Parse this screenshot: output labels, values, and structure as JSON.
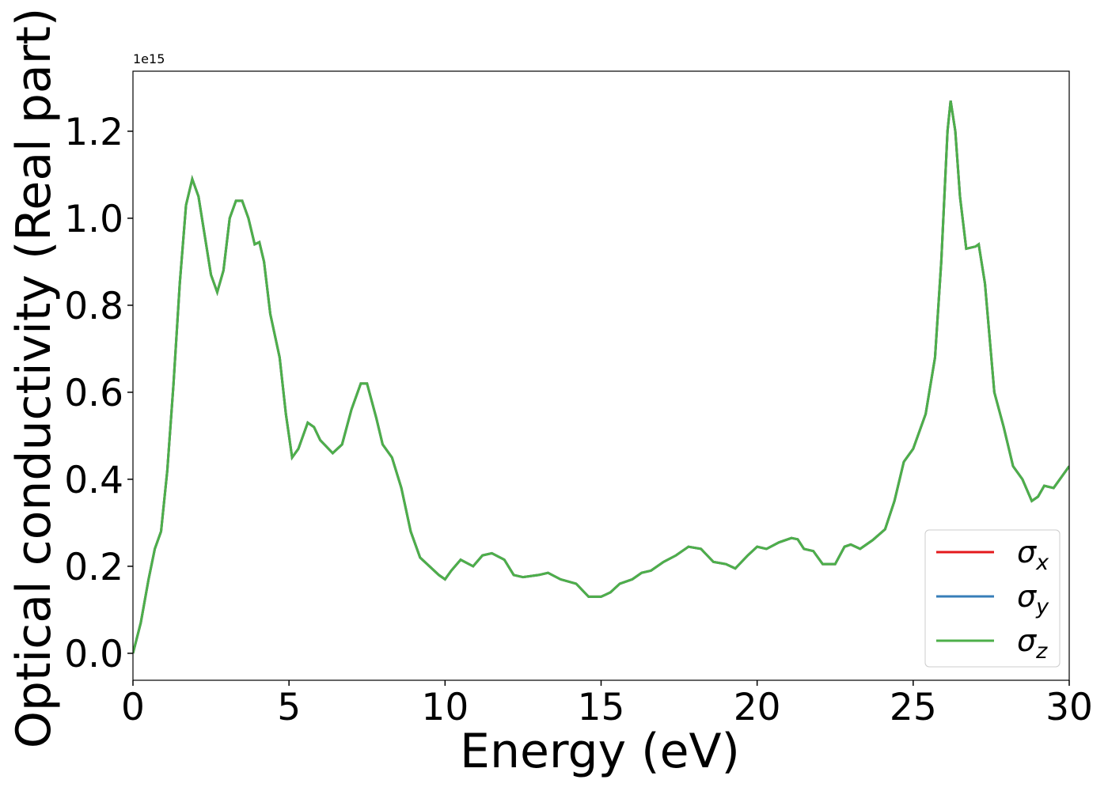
{
  "chart_data": {
    "type": "line",
    "x_label": "Energy (eV)",
    "y_label": "Optical conductivity (Real part)",
    "y_offset_label": "1e15",
    "xlim": [
      0,
      30
    ],
    "xticks": [
      0,
      5,
      10,
      15,
      20,
      25,
      30
    ],
    "ylim": [
      -0.062,
      1.338
    ],
    "yticks": [
      {
        "value": 0,
        "label": "0.0"
      },
      {
        "value": 0.2,
        "label": "0.2"
      },
      {
        "value": 0.4,
        "label": "0.4"
      },
      {
        "value": 0.6,
        "label": "0.6"
      },
      {
        "value": 0.8,
        "label": "0.8"
      },
      {
        "value": 1.0,
        "label": "1.0"
      },
      {
        "value": 1.2,
        "label": "1.2"
      }
    ],
    "legend": "lower right",
    "grid": false,
    "x": [
      0,
      0.25,
      0.5,
      0.7,
      0.9,
      1.1,
      1.3,
      1.5,
      1.7,
      1.9,
      2.1,
      2.3,
      2.5,
      2.7,
      2.9,
      3.1,
      3.3,
      3.5,
      3.7,
      3.9,
      4.05,
      4.2,
      4.4,
      4.7,
      4.9,
      5.1,
      5.3,
      5.6,
      5.8,
      6.0,
      6.4,
      6.7,
      7.0,
      7.3,
      7.5,
      7.8,
      8.0,
      8.3,
      8.6,
      8.9,
      9.2,
      9.5,
      9.8,
      10.0,
      10.2,
      10.5,
      10.9,
      11.2,
      11.5,
      11.9,
      12.2,
      12.5,
      13.0,
      13.3,
      13.7,
      14.2,
      14.6,
      15.0,
      15.3,
      15.6,
      16.0,
      16.3,
      16.6,
      17.0,
      17.4,
      17.8,
      18.2,
      18.6,
      19.0,
      19.3,
      19.7,
      20.0,
      20.3,
      20.7,
      21.1,
      21.3,
      21.5,
      21.8,
      22.1,
      22.5,
      22.8,
      23.0,
      23.3,
      23.7,
      24.1,
      24.4,
      24.7,
      25.0,
      25.4,
      25.7,
      25.9,
      26.1,
      26.2,
      26.35,
      26.5,
      26.7,
      27.0,
      27.1,
      27.3,
      27.6,
      27.9,
      28.2,
      28.5,
      28.8,
      29.0,
      29.2,
      29.5,
      29.8,
      30
    ],
    "series": [
      {
        "name": "σx",
        "color": "#e41a1c",
        "values": [
          0,
          0.07,
          0.17,
          0.24,
          0.28,
          0.42,
          0.62,
          0.85,
          1.03,
          1.09,
          1.05,
          0.96,
          0.87,
          0.83,
          0.88,
          1.0,
          1.04,
          1.04,
          1.0,
          0.94,
          0.945,
          0.9,
          0.78,
          0.68,
          0.55,
          0.45,
          0.47,
          0.53,
          0.52,
          0.49,
          0.46,
          0.48,
          0.56,
          0.62,
          0.62,
          0.54,
          0.48,
          0.45,
          0.38,
          0.28,
          0.22,
          0.2,
          0.18,
          0.17,
          0.19,
          0.215,
          0.2,
          0.225,
          0.23,
          0.215,
          0.18,
          0.175,
          0.18,
          0.185,
          0.17,
          0.16,
          0.13,
          0.13,
          0.14,
          0.16,
          0.17,
          0.185,
          0.19,
          0.21,
          0.225,
          0.245,
          0.24,
          0.21,
          0.205,
          0.195,
          0.225,
          0.245,
          0.24,
          0.255,
          0.265,
          0.262,
          0.24,
          0.235,
          0.205,
          0.205,
          0.245,
          0.25,
          0.24,
          0.26,
          0.285,
          0.35,
          0.44,
          0.47,
          0.55,
          0.68,
          0.9,
          1.2,
          1.27,
          1.2,
          1.05,
          0.93,
          0.935,
          0.94,
          0.85,
          0.6,
          0.52,
          0.43,
          0.4,
          0.35,
          0.36,
          0.385,
          0.38,
          0.41,
          0.43
        ]
      },
      {
        "name": "σy",
        "color": "#377eb8",
        "values": [
          0,
          0.07,
          0.17,
          0.24,
          0.28,
          0.42,
          0.62,
          0.85,
          1.03,
          1.09,
          1.05,
          0.96,
          0.87,
          0.83,
          0.88,
          1.0,
          1.04,
          1.04,
          1.0,
          0.94,
          0.945,
          0.9,
          0.78,
          0.68,
          0.55,
          0.45,
          0.47,
          0.53,
          0.52,
          0.49,
          0.46,
          0.48,
          0.56,
          0.62,
          0.62,
          0.54,
          0.48,
          0.45,
          0.38,
          0.28,
          0.22,
          0.2,
          0.18,
          0.17,
          0.19,
          0.215,
          0.2,
          0.225,
          0.23,
          0.215,
          0.18,
          0.175,
          0.18,
          0.185,
          0.17,
          0.16,
          0.13,
          0.13,
          0.14,
          0.16,
          0.17,
          0.185,
          0.19,
          0.21,
          0.225,
          0.245,
          0.24,
          0.21,
          0.205,
          0.195,
          0.225,
          0.245,
          0.24,
          0.255,
          0.265,
          0.262,
          0.24,
          0.235,
          0.205,
          0.205,
          0.245,
          0.25,
          0.24,
          0.26,
          0.285,
          0.35,
          0.44,
          0.47,
          0.55,
          0.68,
          0.9,
          1.2,
          1.27,
          1.2,
          1.05,
          0.93,
          0.935,
          0.94,
          0.85,
          0.6,
          0.52,
          0.43,
          0.4,
          0.35,
          0.36,
          0.385,
          0.38,
          0.41,
          0.43
        ]
      },
      {
        "name": "σz",
        "color": "#4daf4a",
        "values": [
          0,
          0.07,
          0.17,
          0.24,
          0.28,
          0.42,
          0.62,
          0.85,
          1.03,
          1.09,
          1.05,
          0.96,
          0.87,
          0.83,
          0.88,
          1.0,
          1.04,
          1.04,
          1.0,
          0.94,
          0.945,
          0.9,
          0.78,
          0.68,
          0.55,
          0.45,
          0.47,
          0.53,
          0.52,
          0.49,
          0.46,
          0.48,
          0.56,
          0.62,
          0.62,
          0.54,
          0.48,
          0.45,
          0.38,
          0.28,
          0.22,
          0.2,
          0.18,
          0.17,
          0.19,
          0.215,
          0.2,
          0.225,
          0.23,
          0.215,
          0.18,
          0.175,
          0.18,
          0.185,
          0.17,
          0.16,
          0.13,
          0.13,
          0.14,
          0.16,
          0.17,
          0.185,
          0.19,
          0.21,
          0.225,
          0.245,
          0.24,
          0.21,
          0.205,
          0.195,
          0.225,
          0.245,
          0.24,
          0.255,
          0.265,
          0.262,
          0.24,
          0.235,
          0.205,
          0.205,
          0.245,
          0.25,
          0.24,
          0.26,
          0.285,
          0.35,
          0.44,
          0.47,
          0.55,
          0.68,
          0.9,
          1.2,
          1.27,
          1.2,
          1.05,
          0.93,
          0.935,
          0.94,
          0.85,
          0.6,
          0.52,
          0.43,
          0.4,
          0.35,
          0.36,
          0.385,
          0.38,
          0.41,
          0.43
        ]
      }
    ]
  }
}
